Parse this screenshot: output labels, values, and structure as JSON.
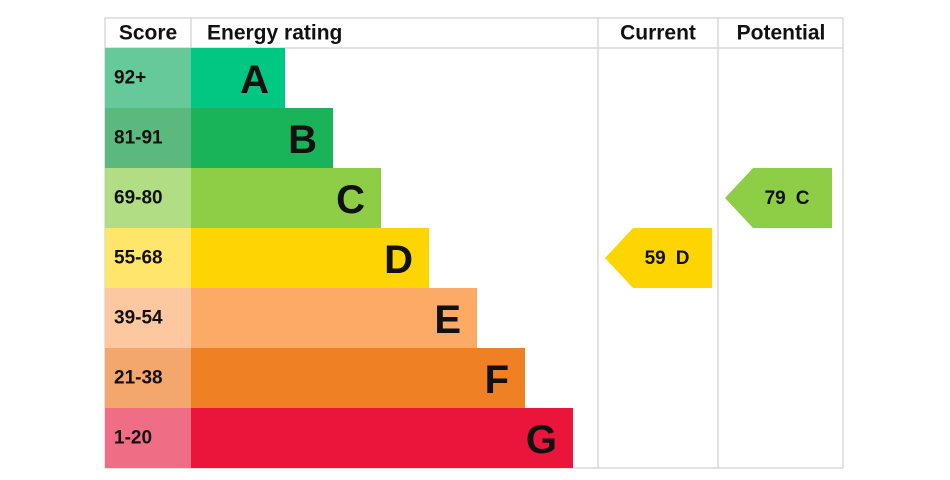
{
  "header": {
    "score": "Score",
    "energy_rating": "Energy rating",
    "current": "Current",
    "potential": "Potential"
  },
  "bands": [
    {
      "score": "92+",
      "letter": "A"
    },
    {
      "score": "81-91",
      "letter": "B"
    },
    {
      "score": "69-80",
      "letter": "C"
    },
    {
      "score": "55-68",
      "letter": "D"
    },
    {
      "score": "39-54",
      "letter": "E"
    },
    {
      "score": "21-38",
      "letter": "F"
    },
    {
      "score": "1-20",
      "letter": "G"
    }
  ],
  "current": {
    "score": 59,
    "band": "D"
  },
  "potential": {
    "score": 79,
    "band": "C"
  }
}
